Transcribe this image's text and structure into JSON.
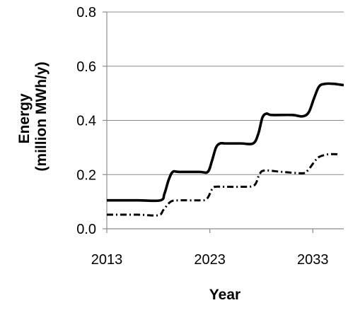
{
  "chart_data": {
    "type": "line",
    "xlabel": "Year",
    "ylabel_lines": [
      "Energy",
      "(million MWh/y)"
    ],
    "xlim": [
      2013,
      2036
    ],
    "ylim": [
      0,
      0.8
    ],
    "xticks": [
      2013,
      2023,
      2033
    ],
    "xtick_labels": [
      "2013",
      "2023",
      "2033"
    ],
    "yticks": [
      0.0,
      0.2,
      0.4,
      0.6,
      0.8
    ],
    "ytick_labels": [
      "0.0",
      "0.2",
      "0.4",
      "0.6",
      "0.8"
    ],
    "grid": "horizontal",
    "legend": "none",
    "series": [
      {
        "style": "solid",
        "color": "#000000",
        "x": [
          2013,
          2016,
          2018.2,
          2018.6,
          2019,
          2019.4,
          2020,
          2022,
          2022.8,
          2023.2,
          2023.6,
          2024,
          2024.5,
          2026,
          2027.2,
          2027.7,
          2028.1,
          2028.5,
          2029,
          2031,
          2032,
          2032.6,
          2033.1,
          2033.6,
          2034.2,
          2035,
          2036
        ],
        "y": [
          0.105,
          0.105,
          0.105,
          0.13,
          0.18,
          0.21,
          0.21,
          0.21,
          0.21,
          0.25,
          0.3,
          0.315,
          0.315,
          0.315,
          0.315,
          0.35,
          0.41,
          0.425,
          0.42,
          0.42,
          0.415,
          0.43,
          0.48,
          0.525,
          0.535,
          0.535,
          0.53
        ]
      },
      {
        "style": "dash-dot",
        "color": "#000000",
        "x": [
          2013,
          2016,
          2018,
          2018.5,
          2019.2,
          2020,
          2022,
          2022.7,
          2023.2,
          2023.5,
          2024.5,
          2026,
          2027.3,
          2027.8,
          2028.3,
          2030,
          2032,
          2032.5,
          2033.1,
          2033.6,
          2034.5,
          2035.5
        ],
        "y": [
          0.052,
          0.052,
          0.05,
          0.07,
          0.1,
          0.105,
          0.105,
          0.11,
          0.145,
          0.155,
          0.155,
          0.155,
          0.16,
          0.2,
          0.215,
          0.21,
          0.205,
          0.215,
          0.245,
          0.265,
          0.275,
          0.275
        ]
      }
    ]
  }
}
